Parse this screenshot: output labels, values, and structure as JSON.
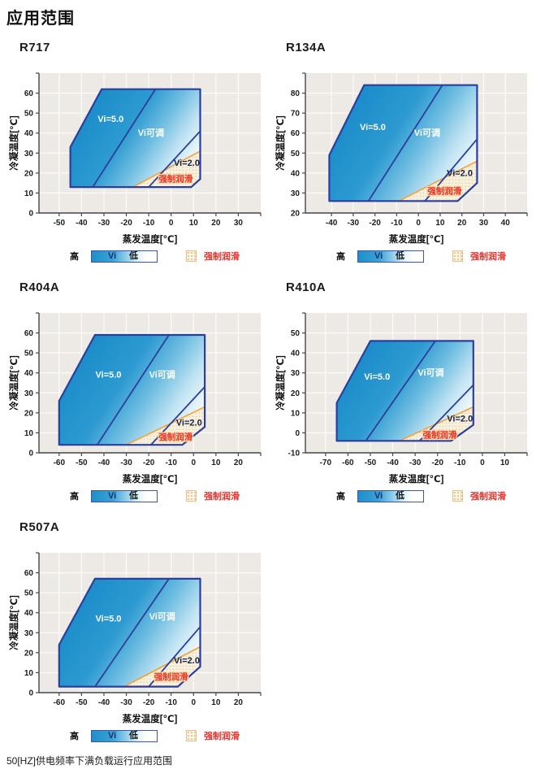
{
  "page": {
    "title": "应用范围",
    "footnote": "50[HZ]供电频率下满负载运行应用范围"
  },
  "legend": {
    "high": "高",
    "vi": "Vi",
    "low": "低",
    "forced": "强制润滑"
  },
  "colors": {
    "plot_bg": "#edeae5",
    "grid": "#fbfaf7",
    "axis": "#44444c",
    "tick_text": "#1c1c1c",
    "envelope_border": "#2c3e9c",
    "orange_line": "#f0a23c",
    "forced_fill": "#f7f0dd",
    "forced_dot": "#dcc69a",
    "red_text": "#e5332d",
    "navy_text": "#16214d",
    "white_text": "#ffffff",
    "gradient_stops": [
      [
        0,
        "#1689c8"
      ],
      [
        0.42,
        "#2d9ad1"
      ],
      [
        0.62,
        "#72bfe2"
      ],
      [
        0.8,
        "#c2e4f3"
      ],
      [
        1,
        "#ffffff"
      ]
    ]
  },
  "chart_data": [
    {
      "type": "area",
      "title": "R717",
      "xlabel": "蒸发温度[℃]",
      "ylabel": "冷凝温度[℃]",
      "xlim": [
        -59,
        40
      ],
      "ylim": [
        0,
        70
      ],
      "xticks": [
        -50,
        -40,
        -30,
        -20,
        -10,
        0,
        10,
        20,
        30
      ],
      "yticks": [
        0,
        10,
        20,
        30,
        40,
        50,
        60
      ],
      "envelope": [
        [
          -45,
          13
        ],
        [
          -45,
          33
        ],
        [
          -31,
          62
        ],
        [
          13,
          62
        ],
        [
          13,
          17
        ],
        [
          9,
          13
        ]
      ],
      "vi5_line": [
        [
          -35,
          13
        ],
        [
          -7,
          62
        ]
      ],
      "vi2_line": [
        [
          -10,
          13
        ],
        [
          13,
          41
        ]
      ],
      "orange_line": [
        [
          -17,
          13
        ],
        [
          13,
          31
        ]
      ],
      "forced_region": [
        [
          -17,
          13
        ],
        [
          13,
          31
        ],
        [
          13,
          17
        ],
        [
          9,
          13
        ]
      ],
      "labels": [
        {
          "text": "Vi=5.0",
          "x": -27,
          "y": 47,
          "color": "white"
        },
        {
          "text": "Vi可调",
          "x": -9,
          "y": 40,
          "color": "white"
        },
        {
          "text": "Vi=2.0",
          "x": 7,
          "y": 25,
          "color": "navy"
        },
        {
          "text": "强制润滑",
          "x": 2,
          "y": 17,
          "color": "red"
        }
      ]
    },
    {
      "type": "area",
      "title": "R134A",
      "xlabel": "蒸发温度[℃]",
      "ylabel": "冷凝温度[℃]",
      "xlim": [
        -52,
        50
      ],
      "ylim": [
        20,
        90
      ],
      "xticks": [
        -40,
        -30,
        -20,
        -10,
        0,
        10,
        20,
        30,
        40
      ],
      "yticks": [
        20,
        30,
        40,
        50,
        60,
        70,
        80
      ],
      "envelope": [
        [
          -41,
          26
        ],
        [
          -41,
          49
        ],
        [
          -25,
          84
        ],
        [
          27,
          84
        ],
        [
          27,
          35
        ],
        [
          18,
          26
        ]
      ],
      "vi5_line": [
        [
          -23,
          26
        ],
        [
          11,
          84
        ]
      ],
      "vi2_line": [
        [
          3,
          26
        ],
        [
          27,
          57
        ]
      ],
      "orange_line": [
        [
          -9,
          26
        ],
        [
          27,
          46
        ]
      ],
      "forced_region": [
        [
          -9,
          26
        ],
        [
          27,
          46
        ],
        [
          27,
          35
        ],
        [
          18,
          26
        ]
      ],
      "labels": [
        {
          "text": "Vi=5.0",
          "x": -21,
          "y": 63,
          "color": "white"
        },
        {
          "text": "Vi可调",
          "x": 4,
          "y": 60,
          "color": "white"
        },
        {
          "text": "Vi=2.0",
          "x": 19,
          "y": 40,
          "color": "navy"
        },
        {
          "text": "强制润滑",
          "x": 12,
          "y": 31,
          "color": "red"
        }
      ]
    },
    {
      "type": "area",
      "title": "R404A",
      "xlabel": "蒸发温度[℃]",
      "ylabel": "冷凝温度[℃]",
      "xlim": [
        -69,
        30
      ],
      "ylim": [
        0,
        70
      ],
      "xticks": [
        -60,
        -50,
        -40,
        -30,
        -20,
        -10,
        0,
        10,
        20
      ],
      "yticks": [
        0,
        10,
        20,
        30,
        40,
        50,
        60
      ],
      "envelope": [
        [
          -60,
          4
        ],
        [
          -60,
          26
        ],
        [
          -44,
          59
        ],
        [
          5,
          59
        ],
        [
          5,
          13
        ],
        [
          -5,
          4
        ]
      ],
      "vi5_line": [
        [
          -43,
          4
        ],
        [
          -11,
          59
        ]
      ],
      "vi2_line": [
        [
          -19,
          4
        ],
        [
          5,
          33
        ]
      ],
      "orange_line": [
        [
          -30,
          4
        ],
        [
          5,
          23
        ]
      ],
      "forced_region": [
        [
          -30,
          4
        ],
        [
          5,
          23
        ],
        [
          5,
          13
        ],
        [
          -5,
          4
        ]
      ],
      "labels": [
        {
          "text": "Vi=5.0",
          "x": -38,
          "y": 39,
          "color": "white"
        },
        {
          "text": "Vi可调",
          "x": -14,
          "y": 39,
          "color": "white"
        },
        {
          "text": "Vi=2.0",
          "x": -2,
          "y": 15,
          "color": "navy"
        },
        {
          "text": "强制润滑",
          "x": -8,
          "y": 8,
          "color": "red"
        }
      ]
    },
    {
      "type": "area",
      "title": "R410A",
      "xlabel": "蒸发温度[℃]",
      "ylabel": "冷凝温度[℃]",
      "xlim": [
        -79,
        20
      ],
      "ylim": [
        -10,
        60
      ],
      "xticks": [
        -70,
        -60,
        -50,
        -40,
        -30,
        -20,
        -10,
        0,
        10
      ],
      "yticks": [
        -10,
        0,
        10,
        20,
        30,
        40,
        50
      ],
      "envelope": [
        [
          -65,
          -4
        ],
        [
          -65,
          15
        ],
        [
          -50,
          46
        ],
        [
          -4,
          46
        ],
        [
          -4,
          4
        ],
        [
          -14,
          -4
        ]
      ],
      "vi5_line": [
        [
          -52,
          -4
        ],
        [
          -21,
          46
        ]
      ],
      "vi2_line": [
        [
          -28,
          -4
        ],
        [
          -4,
          24
        ]
      ],
      "orange_line": [
        [
          -37,
          -4
        ],
        [
          -4,
          13
        ]
      ],
      "forced_region": [
        [
          -37,
          -4
        ],
        [
          -4,
          13
        ],
        [
          -4,
          4
        ],
        [
          -14,
          -4
        ]
      ],
      "labels": [
        {
          "text": "Vi=5.0",
          "x": -47,
          "y": 28,
          "color": "white"
        },
        {
          "text": "Vi可调",
          "x": -23,
          "y": 30,
          "color": "white"
        },
        {
          "text": "Vi=2.0",
          "x": -10,
          "y": 7,
          "color": "navy"
        },
        {
          "text": "强制润滑",
          "x": -19,
          "y": -1,
          "color": "red"
        }
      ]
    },
    {
      "type": "area",
      "title": "R507A",
      "xlabel": "蒸发温度[℃]",
      "ylabel": "冷凝温度[℃]",
      "xlim": [
        -69,
        30
      ],
      "ylim": [
        0,
        70
      ],
      "xticks": [
        -60,
        -50,
        -40,
        -30,
        -20,
        -10,
        0,
        10,
        20
      ],
      "yticks": [
        0,
        10,
        20,
        30,
        40,
        50,
        60
      ],
      "envelope": [
        [
          -60,
          3
        ],
        [
          -60,
          24
        ],
        [
          -44,
          57
        ],
        [
          3,
          57
        ],
        [
          3,
          13
        ],
        [
          -7,
          3
        ]
      ],
      "vi5_line": [
        [
          -44,
          3
        ],
        [
          -11,
          57
        ]
      ],
      "vi2_line": [
        [
          -20,
          3
        ],
        [
          3,
          33
        ]
      ],
      "orange_line": [
        [
          -31,
          3
        ],
        [
          3,
          23
        ]
      ],
      "forced_region": [
        [
          -31,
          3
        ],
        [
          3,
          23
        ],
        [
          3,
          13
        ],
        [
          -7,
          3
        ]
      ],
      "labels": [
        {
          "text": "Vi=5.0",
          "x": -38,
          "y": 37,
          "color": "white"
        },
        {
          "text": "Vi可调",
          "x": -14,
          "y": 38,
          "color": "white"
        },
        {
          "text": "Vi=2.0",
          "x": -3,
          "y": 16,
          "color": "navy"
        },
        {
          "text": "强制润滑",
          "x": -10,
          "y": 8,
          "color": "red"
        }
      ]
    }
  ]
}
